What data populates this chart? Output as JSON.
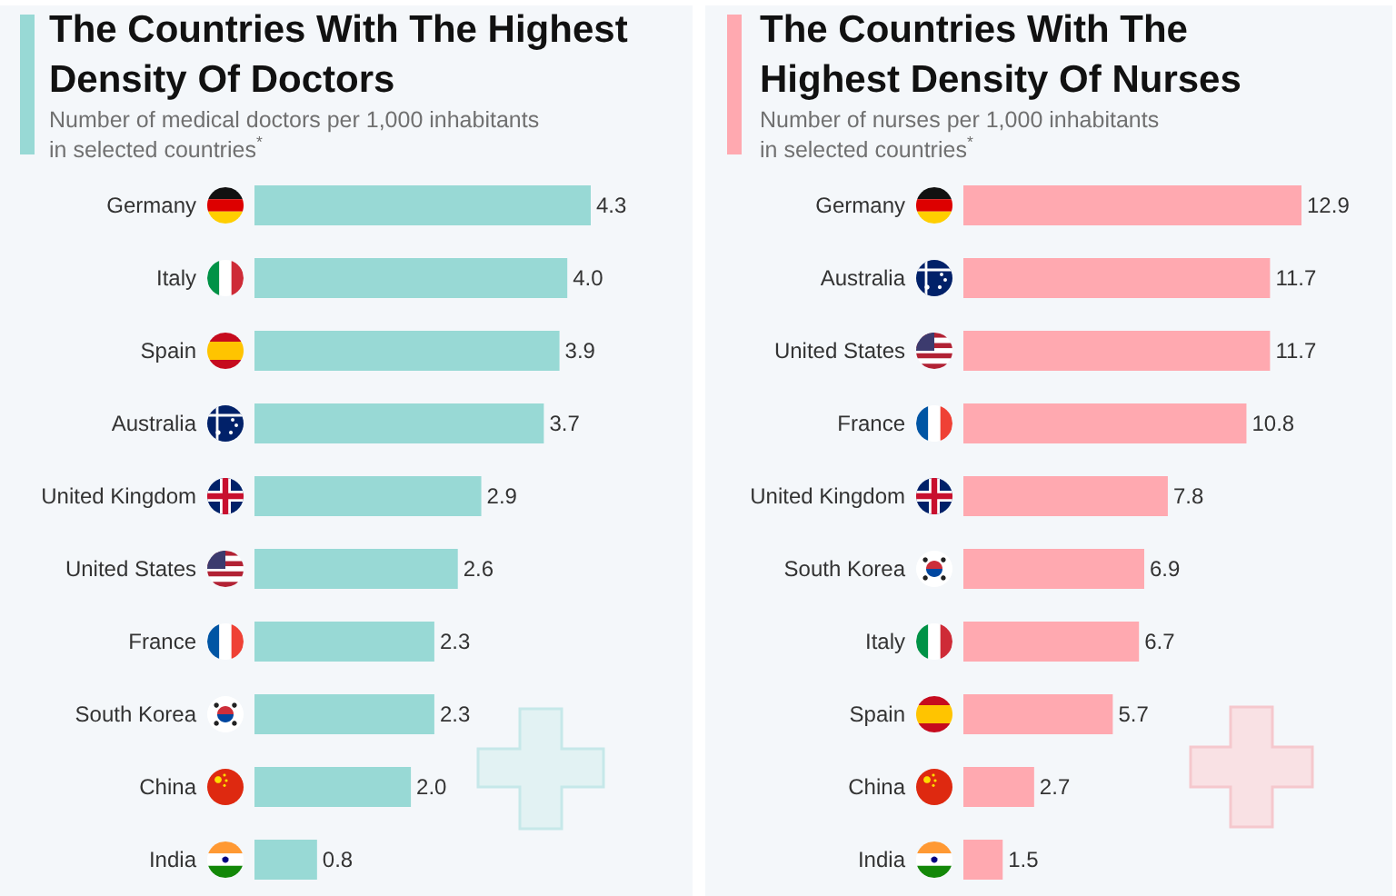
{
  "chart_data": [
    {
      "type": "bar",
      "orientation": "horizontal",
      "title": "The Countries With The Highest\nDensity Of Doctors",
      "subtitle": "Number of medical doctors per 1,000 inhabitants\nin selected countries$^{*}$",
      "categories": [
        "Germany",
        "Italy",
        "Spain",
        "Australia",
        "United Kingdom",
        "United States",
        "France",
        "South Korea",
        "China",
        "India"
      ],
      "values": [
        4.3,
        4.0,
        3.9,
        3.7,
        2.9,
        2.6,
        2.3,
        2.3,
        2.0,
        0.8
      ],
      "value_labels": [
        "4.3",
        "4.0",
        "3.9",
        "3.7",
        "2.9",
        "2.6",
        "2.3",
        "2.3",
        "2.0",
        "0.8"
      ],
      "color": "#98d9d5",
      "tick_labels": "y"
    },
    {
      "type": "bar",
      "orientation": "horizontal",
      "title": "The Countries With The\nHighest Density Of Nurses",
      "subtitle": "Number of nurses per 1,000 inhabitants\nin selected countries$^{*}$",
      "categories": [
        "Germany",
        "Australia",
        "United States",
        "France",
        "United Kingdom",
        "South Korea",
        "Italy",
        "Spain",
        "China",
        "India"
      ],
      "values": [
        12.9,
        11.7,
        11.7,
        10.8,
        7.8,
        6.9,
        6.7,
        5.7,
        2.7,
        1.5
      ],
      "value_labels": [
        "12.9",
        "11.7",
        "11.7",
        "10.8",
        "7.8",
        "6.9",
        "6.7",
        "5.7",
        "2.7",
        "1.5"
      ],
      "color": "#ffa9b0",
      "tick_labels": "y"
    }
  ]
}
